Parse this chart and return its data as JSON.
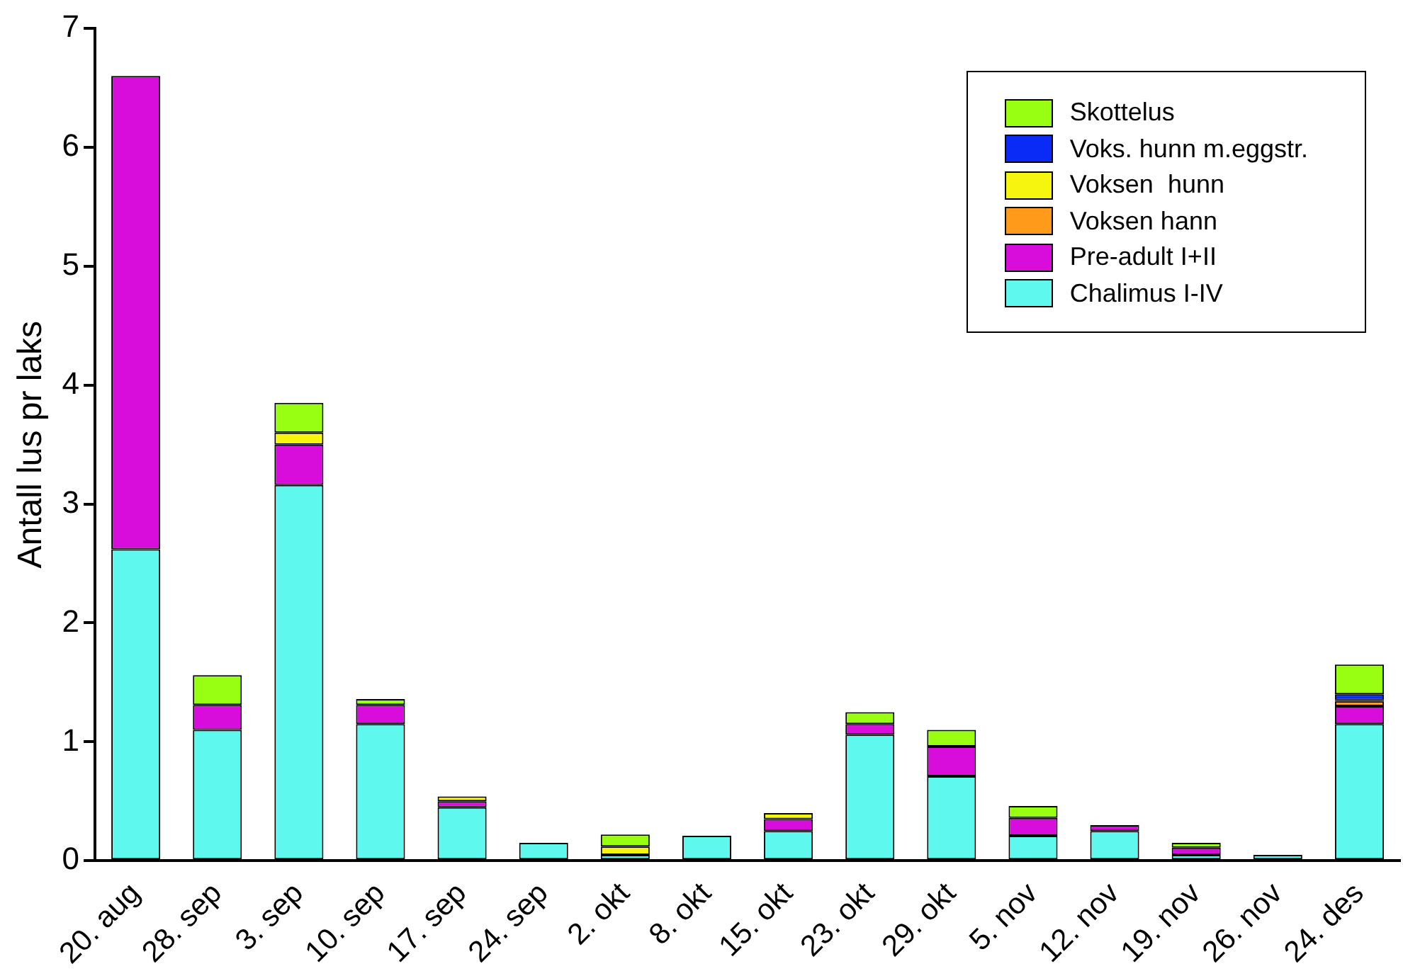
{
  "chart_data": {
    "type": "bar",
    "ylabel": "Antall lus pr laks",
    "stacked": true,
    "legend": "top right",
    "grid": false,
    "categories": [
      "20. aug",
      "28. sep",
      "3. sep",
      "10. sep",
      "17. sep",
      "24. sep",
      "2. okt",
      "8. okt",
      "15. okt",
      "23. okt",
      "29. okt",
      "5. nov",
      "12. nov",
      "19. nov",
      "26. nov",
      "24. des"
    ],
    "ylim": [
      0,
      7
    ],
    "yticks": [
      0,
      1,
      2,
      3,
      4,
      5,
      6,
      7
    ],
    "series": [
      {
        "name": "Chalimus I-IV",
        "color": "#5ff8ef",
        "values": [
          2.62,
          1.1,
          3.16,
          1.15,
          0.45,
          0.15,
          0.05,
          0.21,
          0.25,
          1.06,
          0.71,
          0.21,
          0.25,
          0.05,
          0.05,
          1.15
        ]
      },
      {
        "name": "Pre-adult I+II",
        "color": "#d80ddc",
        "values": [
          3.98,
          0.21,
          0.34,
          0.16,
          0.05,
          0,
          0,
          0,
          0.1,
          0.09,
          0.25,
          0.15,
          0.05,
          0.06,
          0,
          0.15
        ]
      },
      {
        "name": "Voksen hann",
        "color": "#ff9a1a",
        "values": [
          0,
          0,
          0,
          0,
          0,
          0,
          0,
          0,
          0,
          0,
          0,
          0,
          0,
          0,
          0,
          0.04
        ]
      },
      {
        "name": "Voksen  hunn",
        "color": "#f5f510",
        "values": [
          0,
          0,
          0.1,
          0,
          0.04,
          0,
          0.07,
          0,
          0.05,
          0,
          0,
          0,
          0,
          0,
          0,
          0.01
        ]
      },
      {
        "name": "Voks. hunn m.eggstr.",
        "color": "#0a2bf5",
        "values": [
          0,
          0,
          0,
          0,
          0,
          0,
          0,
          0,
          0,
          0,
          0,
          0,
          0,
          0,
          0,
          0.05
        ]
      },
      {
        "name": "Skottelus",
        "color": "#99ff12",
        "values": [
          0,
          0.25,
          0.25,
          0.05,
          0,
          0,
          0.1,
          0,
          0,
          0.1,
          0.14,
          0.1,
          0,
          0.04,
          0,
          0.25
        ]
      }
    ]
  }
}
